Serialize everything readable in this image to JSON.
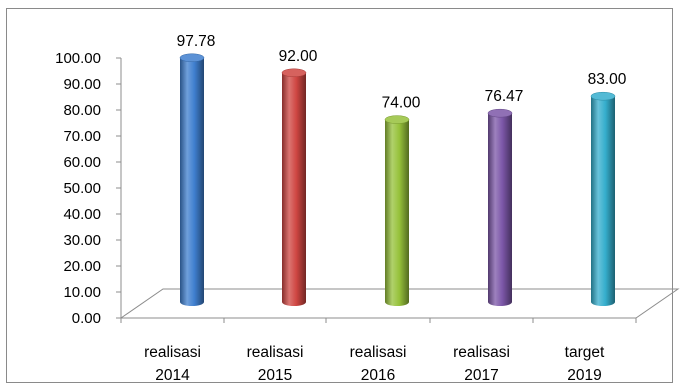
{
  "chart_data": {
    "type": "bar",
    "style": "3d-cylinder",
    "categories": [
      [
        "realisasi",
        "2014"
      ],
      [
        "realisasi",
        "2015"
      ],
      [
        "realisasi",
        "2016"
      ],
      [
        "realisasi",
        "2017"
      ],
      [
        "target",
        "2019"
      ]
    ],
    "values": [
      97.78,
      92.0,
      74.0,
      76.47,
      83.0
    ],
    "value_labels": [
      "97.78",
      "92.00",
      "74.00",
      "76.47",
      "83.00"
    ],
    "colors": [
      "#3f7fcf",
      "#cf4642",
      "#96c13a",
      "#7c57a8",
      "#35aecd"
    ],
    "ylim": [
      0,
      100
    ],
    "yticks": [
      "0.00",
      "10.00",
      "20.00",
      "30.00",
      "40.00",
      "50.00",
      "60.00",
      "70.00",
      "80.00",
      "90.00",
      "100.00"
    ],
    "grid": false,
    "legend": "none",
    "title": "",
    "xlabel": "",
    "ylabel": ""
  }
}
